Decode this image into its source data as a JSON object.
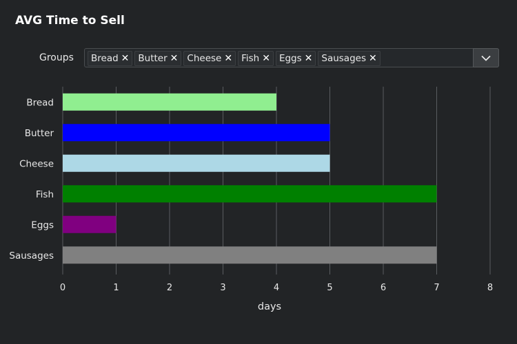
{
  "title": "AVG Time to Sell",
  "filter": {
    "label": "Groups",
    "chips": [
      "Bread",
      "Butter",
      "Cheese",
      "Fish",
      "Eggs",
      "Sausages"
    ],
    "remove_glyph": "✕"
  },
  "colors": {
    "background": "#222426",
    "gridline": "#5a5d60",
    "text": "#e8e8e8"
  },
  "chart_data": {
    "type": "bar",
    "orientation": "horizontal",
    "title": "AVG Time to Sell",
    "xlabel": "days",
    "ylabel": "",
    "categories": [
      "Bread",
      "Butter",
      "Cheese",
      "Fish",
      "Eggs",
      "Sausages"
    ],
    "values": [
      4,
      5,
      5,
      7,
      1,
      7
    ],
    "colors": [
      "#90ee90",
      "#0000ff",
      "#add8e6",
      "#008000",
      "#800080",
      "#808080"
    ],
    "xlim": [
      0,
      8
    ],
    "xticks": [
      0,
      1,
      2,
      3,
      4,
      5,
      6,
      7,
      8
    ],
    "grid": true,
    "legend": "none"
  }
}
